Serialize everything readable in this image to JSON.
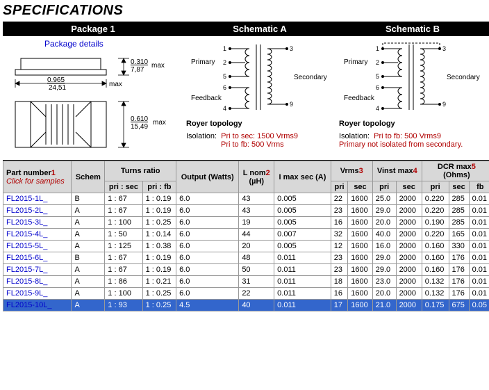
{
  "title": "SPECIFICATIONS",
  "headers": {
    "pkg": "Package 1",
    "schA": "Schematic A",
    "schB": "Schematic B"
  },
  "package_link": "Package details",
  "package": {
    "dim_w_in": "0.965",
    "dim_w_mm": "24,51",
    "dim_h_in": "0.310",
    "dim_h_mm": "7,87",
    "dim_l_in": "0.610",
    "dim_l_mm": "15,49",
    "max": "max"
  },
  "schematic": {
    "primary": "Primary",
    "secondary": "Secondary",
    "feedback": "Feedback",
    "royer": "Royer topology",
    "iso_label": "Isolation:",
    "a_line1": "Pri to sec: 1500 Vrms",
    "a_line2": "Pri to fb: 500 Vrms",
    "b_line1": "Pri to fb: 500 Vrms",
    "b_line2": "Primary not isolated from secondary.",
    "note9": "9"
  },
  "table": {
    "cols": {
      "part": "Part number",
      "part_note": "1",
      "click": "Click for samples",
      "schem": "Schem",
      "turns": "Turns ratio",
      "pri_sec": "pri : sec",
      "pri_fb": "pri : fb",
      "output": "Output (Watts)",
      "lnom": "L nom",
      "lnom_note": "2",
      "lnom_unit": "(µH)",
      "imax": "I max sec (A)",
      "vrms": "Vrms",
      "vrms_note": "3",
      "vinst": "Vinst max",
      "vinst_note": "4",
      "dcr": "DCR max",
      "dcr_note": "5",
      "dcr_unit": "(Ohms)",
      "pri": "pri",
      "sec": "sec",
      "fb": "fb"
    },
    "rows": [
      {
        "pn": "FL2015-1L_",
        "sch": "B",
        "ps": "1 : 67",
        "pf": "1 : 0.19",
        "out": "6.0",
        "ln": "43",
        "im": "0.005",
        "vp": "22",
        "vs": "1600",
        "vip": "25.0",
        "vis": "2000",
        "dp": "0.220",
        "ds": "285",
        "df": "0.01",
        "sel": false
      },
      {
        "pn": "FL2015-2L_",
        "sch": "A",
        "ps": "1 : 67",
        "pf": "1 : 0.19",
        "out": "6.0",
        "ln": "43",
        "im": "0.005",
        "vp": "23",
        "vs": "1600",
        "vip": "29.0",
        "vis": "2000",
        "dp": "0.220",
        "ds": "285",
        "df": "0.01",
        "sel": false
      },
      {
        "pn": "FL2015-3L_",
        "sch": "A",
        "ps": "1 : 100",
        "pf": "1 : 0.25",
        "out": "6.0",
        "ln": "19",
        "im": "0.005",
        "vp": "16",
        "vs": "1600",
        "vip": "20.0",
        "vis": "2000",
        "dp": "0.190",
        "ds": "285",
        "df": "0.01",
        "sel": false
      },
      {
        "pn": "FL2015-4L_",
        "sch": "A",
        "ps": "1 : 50",
        "pf": "1 : 0.14",
        "out": "6.0",
        "ln": "44",
        "im": "0.007",
        "vp": "32",
        "vs": "1600",
        "vip": "40.0",
        "vis": "2000",
        "dp": "0.220",
        "ds": "165",
        "df": "0.01",
        "sel": false
      },
      {
        "pn": "FL2015-5L_",
        "sch": "A",
        "ps": "1 : 125",
        "pf": "1 : 0.38",
        "out": "6.0",
        "ln": "20",
        "im": "0.005",
        "vp": "12",
        "vs": "1600",
        "vip": "16.0",
        "vis": "2000",
        "dp": "0.160",
        "ds": "330",
        "df": "0.01",
        "sel": false
      },
      {
        "pn": "FL2015-6L_",
        "sch": "B",
        "ps": "1 : 67",
        "pf": "1 : 0.19",
        "out": "6.0",
        "ln": "48",
        "im": "0.011",
        "vp": "23",
        "vs": "1600",
        "vip": "29.0",
        "vis": "2000",
        "dp": "0.160",
        "ds": "176",
        "df": "0.01",
        "sel": false
      },
      {
        "pn": "FL2015-7L_",
        "sch": "A",
        "ps": "1 : 67",
        "pf": "1 : 0.19",
        "out": "6.0",
        "ln": "50",
        "im": "0.011",
        "vp": "23",
        "vs": "1600",
        "vip": "29.0",
        "vis": "2000",
        "dp": "0.160",
        "ds": "176",
        "df": "0.01",
        "sel": false
      },
      {
        "pn": "FL2015-8L_",
        "sch": "A",
        "ps": "1 : 86",
        "pf": "1 : 0.21",
        "out": "6.0",
        "ln": "31",
        "im": "0.011",
        "vp": "18",
        "vs": "1600",
        "vip": "23.0",
        "vis": "2000",
        "dp": "0.132",
        "ds": "176",
        "df": "0.01",
        "sel": false
      },
      {
        "pn": "FL2015-9L_",
        "sch": "A",
        "ps": "1 : 100",
        "pf": "1 : 0.25",
        "out": "6.0",
        "ln": "22",
        "im": "0.011",
        "vp": "16",
        "vs": "1600",
        "vip": "20.0",
        "vis": "2000",
        "dp": "0.132",
        "ds": "176",
        "df": "0.01",
        "sel": false
      },
      {
        "pn": "FL2015-10L_",
        "sch": "A",
        "ps": "1 : 93",
        "pf": "1 : 0.25",
        "out": "4.5",
        "ln": "40",
        "im": "0.011",
        "vp": "17",
        "vs": "1600",
        "vip": "21.0",
        "vis": "2000",
        "dp": "0.175",
        "ds": "675",
        "df": "0.05",
        "sel": true
      }
    ]
  }
}
